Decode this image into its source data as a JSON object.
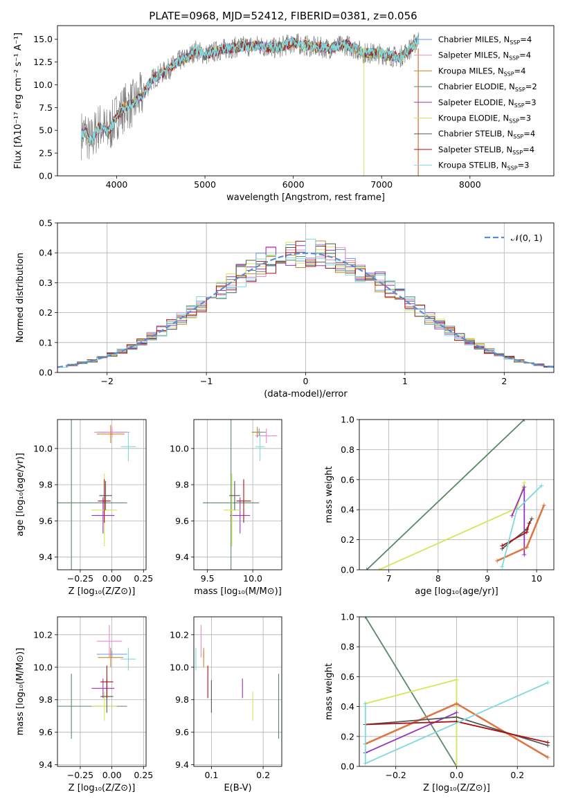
{
  "figure": {
    "title": "PLATE=0968, MJD=52412, FIBERID=0381, z=0.056",
    "series_colors": {
      "Chabrier MILES": "#6699dd",
      "Salpeter MILES": "#ee88cc",
      "Kroupa MILES": "#cc8822",
      "Chabrier ELODIE": "#558866",
      "Salpeter ELODIE": "#9933bb",
      "Kroupa ELODIE": "#d4e655",
      "Chabrier STELIB": "#555555",
      "Salpeter STELIB": "#aa1111",
      "Kroupa STELIB": "#7fd8dd",
      "Kroupa MILES (bold)": "#dd7744"
    }
  },
  "chart_data": [
    {
      "id": "spectrum",
      "type": "line",
      "title": "PLATE=0968, MJD=52412, FIBERID=0381, z=0.056",
      "xlabel": "wavelength [Angstrom, rest frame]",
      "ylabel": "Flux [fλ10⁻¹⁷ erg cm⁻² s⁻¹ A⁻¹]",
      "xlim": [
        3330,
        8950
      ],
      "ylim": [
        0,
        16.5
      ],
      "xticks": [
        "4000",
        "5000",
        "6000",
        "7000",
        "8000"
      ],
      "yticks": [
        "0.0",
        "2.5",
        "5.0",
        "7.5",
        "10.0",
        "12.5",
        "15.0"
      ],
      "grid": false,
      "legend_position": "right",
      "continuum": {
        "x": [
          3600,
          3650,
          3700,
          3800,
          3900,
          3950,
          4000,
          4100,
          4200,
          4300,
          4400,
          4500,
          4600,
          4700,
          4800,
          4900,
          5000,
          5200,
          5400,
          5600,
          5800,
          6000,
          6200,
          6400,
          6600,
          6800,
          7000,
          7200,
          7350,
          7420
        ],
        "y": [
          4.5,
          4.8,
          3.6,
          5.5,
          4.8,
          5.6,
          6.6,
          7.6,
          8.0,
          9.0,
          10.6,
          11.2,
          11.8,
          12.6,
          13.0,
          13.8,
          13.3,
          13.9,
          14.2,
          14.3,
          14.0,
          14.6,
          14.2,
          14.0,
          14.4,
          13.5,
          13.4,
          13.0,
          14.2,
          15.0
        ]
      },
      "legend": [
        "Chabrier MILES, N_SSP=4",
        "Salpeter MILES, N_SSP=4",
        "Kroupa MILES, N_SSP=4",
        "Chabrier ELODIE, N_SSP=2",
        "Salpeter ELODIE, N_SSP=3",
        "Kroupa ELODIE, N_SSP=3",
        "Chabrier STELIB, N_SSP=4",
        "Salpeter STELIB, N_SSP=4",
        "Kroupa STELIB, N_SSP=3"
      ]
    },
    {
      "id": "residuals",
      "type": "line",
      "xlabel": "(data-model)/error",
      "ylabel": "Normed distribution",
      "xlim": [
        -2.5,
        2.5
      ],
      "ylim": [
        0,
        0.5
      ],
      "xticks": [
        "−2",
        "−1",
        "0",
        "1",
        "2"
      ],
      "yticks": [
        "0.0",
        "0.1",
        "0.2",
        "0.3",
        "0.4",
        "0.5"
      ],
      "grid": true,
      "legend": [
        "𝒩(0, 1)"
      ],
      "gaussian": {
        "mean": 0,
        "sigma": 1
      }
    },
    {
      "id": "age_vs_Z",
      "type": "scatter",
      "xlabel": "Z [log₁₀(Z/Z⊙)]",
      "ylabel": "age  [log₁₀(age/yr)]",
      "xlim": [
        -0.43,
        0.27
      ],
      "ylim": [
        9.33,
        10.16
      ],
      "xticks": [
        "−0.25",
        "0.00",
        "0.25"
      ],
      "yticks": [
        "9.4",
        "9.6",
        "9.8",
        "10.0"
      ],
      "grid": true,
      "points": [
        {
          "x": 0.0,
          "y": 10.09,
          "xerr": 0.12,
          "yerr": 0.02
        },
        {
          "x": 0.0,
          "y": 10.09,
          "xerr": 0.14,
          "yerr": 0.03
        },
        {
          "x": -0.01,
          "y": 10.08,
          "xerr": 0.11,
          "yerr": 0.05
        },
        {
          "x": -0.32,
          "y": 9.7,
          "xerr": 0.44,
          "yerr": 0.6
        },
        {
          "x": -0.07,
          "y": 9.63,
          "xerr": 0.09,
          "yerr": 0.1
        },
        {
          "x": -0.06,
          "y": 9.66,
          "xerr": 0.1,
          "yerr": 0.2
        },
        {
          "x": -0.05,
          "y": 9.74,
          "xerr": 0.05,
          "yerr": 0.08
        },
        {
          "x": -0.06,
          "y": 9.71,
          "xerr": 0.05,
          "yerr": 0.12
        },
        {
          "x": 0.13,
          "y": 10.01,
          "xerr": 0.06,
          "yerr": 0.08
        }
      ]
    },
    {
      "id": "age_vs_mass",
      "type": "scatter",
      "xlabel": "mass [log₁₀(M/M⊙)]",
      "ylabel": "",
      "xlim": [
        9.35,
        10.32
      ],
      "ylim": [
        9.33,
        10.16
      ],
      "xticks": [
        "9.5",
        "10.0"
      ],
      "yticks": [
        "9.4",
        "9.6",
        "9.8",
        "10.0"
      ],
      "grid": true,
      "points": [
        {
          "x": 10.07,
          "y": 10.09,
          "xerr": 0.08,
          "yerr": 0.02
        },
        {
          "x": 10.15,
          "y": 10.07,
          "xerr": 0.12,
          "yerr": 0.04
        },
        {
          "x": 10.05,
          "y": 10.09,
          "xerr": 0.06,
          "yerr": 0.03
        },
        {
          "x": 9.76,
          "y": 9.7,
          "xerr": 0.31,
          "yerr": 0.6
        },
        {
          "x": 9.86,
          "y": 9.63,
          "xerr": 0.11,
          "yerr": 0.1
        },
        {
          "x": 9.77,
          "y": 9.66,
          "xerr": 0.09,
          "yerr": 0.2
        },
        {
          "x": 9.8,
          "y": 9.74,
          "xerr": 0.06,
          "yerr": 0.08
        },
        {
          "x": 9.9,
          "y": 9.71,
          "xerr": 0.08,
          "yerr": 0.12
        },
        {
          "x": 10.08,
          "y": 10.01,
          "xerr": 0.05,
          "yerr": 0.08
        }
      ]
    },
    {
      "id": "weight_vs_age",
      "type": "line",
      "xlabel": "age  [log₁₀(age/yr)]",
      "ylabel": "mass weight",
      "xlim": [
        6.4,
        10.35
      ],
      "ylim": [
        0,
        1
      ],
      "xticks": [
        "7",
        "8",
        "9",
        "10"
      ],
      "yticks": [
        "0.0",
        "0.2",
        "0.4",
        "0.6",
        "0.8",
        "1.0"
      ],
      "grid": true,
      "series": [
        {
          "x": [
            6.55,
            9.75
          ],
          "y": [
            0.0,
            1.0
          ]
        },
        {
          "x": [
            6.8,
            9.6,
            9.75
          ],
          "y": [
            0.0,
            0.41,
            0.58
          ]
        },
        {
          "x": [
            9.5,
            9.75,
            9.75
          ],
          "y": [
            0.36,
            0.55,
            0.1
          ]
        },
        {
          "x": [
            9.2,
            9.8,
            10.15
          ],
          "y": [
            0.06,
            0.15,
            0.43
          ]
        },
        {
          "x": [
            9.3,
            9.8,
            9.9
          ],
          "y": [
            0.14,
            0.27,
            0.34
          ]
        },
        {
          "x": [
            9.3,
            9.8,
            9.85
          ],
          "y": [
            0.16,
            0.25,
            0.31
          ]
        },
        {
          "x": [
            9.3,
            9.6,
            10.1
          ],
          "y": [
            0.02,
            0.4,
            0.56
          ]
        }
      ]
    },
    {
      "id": "mass_vs_Z",
      "type": "scatter",
      "xlabel": "Z [log₁₀(Z/Z⊙)]",
      "ylabel": "mass [log₁₀(M/M⊙)]",
      "xlim": [
        -0.43,
        0.27
      ],
      "ylim": [
        9.39,
        10.31
      ],
      "xticks": [
        "−0.25",
        "0.00",
        "0.25"
      ],
      "yticks": [
        "9.4",
        "9.6",
        "9.8",
        "10.0",
        "10.2"
      ],
      "grid": true,
      "points": [
        {
          "x": 0.0,
          "y": 10.08,
          "xerr": 0.12,
          "yerr": 0.02
        },
        {
          "x": -0.02,
          "y": 10.16,
          "xerr": 0.1,
          "yerr": 0.1
        },
        {
          "x": -0.01,
          "y": 10.06,
          "xerr": 0.1,
          "yerr": 0.06
        },
        {
          "x": -0.32,
          "y": 9.76,
          "xerr": 0.44,
          "yerr": 0.2
        },
        {
          "x": -0.07,
          "y": 9.87,
          "xerr": 0.09,
          "yerr": 0.06
        },
        {
          "x": -0.06,
          "y": 9.76,
          "xerr": 0.1,
          "yerr": 0.09
        },
        {
          "x": -0.04,
          "y": 9.82,
          "xerr": 0.05,
          "yerr": 0.1
        },
        {
          "x": -0.04,
          "y": 9.91,
          "xerr": 0.05,
          "yerr": 0.1
        },
        {
          "x": 0.13,
          "y": 10.05,
          "xerr": 0.06,
          "yerr": 0.07
        }
      ]
    },
    {
      "id": "mass_vs_ebv",
      "type": "scatter",
      "xlabel": "E(B-V)",
      "ylabel": "",
      "xlim": [
        0.066,
        0.236
      ],
      "ylim": [
        9.39,
        10.31
      ],
      "xticks": [
        "0.1",
        "0.2"
      ],
      "yticks": [
        "9.4",
        "9.6",
        "9.8",
        "10.0",
        "10.2"
      ],
      "grid": true,
      "points": [
        {
          "x": 0.085,
          "y": 10.08,
          "yerr": 0.02
        },
        {
          "x": 0.08,
          "y": 10.16,
          "yerr": 0.1
        },
        {
          "x": 0.085,
          "y": 10.06,
          "yerr": 0.06
        },
        {
          "x": 0.23,
          "y": 9.76,
          "yerr": 0.2
        },
        {
          "x": 0.16,
          "y": 9.87,
          "yerr": 0.06
        },
        {
          "x": 0.18,
          "y": 9.76,
          "yerr": 0.09
        },
        {
          "x": 0.1,
          "y": 9.82,
          "yerr": 0.1
        },
        {
          "x": 0.093,
          "y": 9.91,
          "yerr": 0.1
        },
        {
          "x": 0.07,
          "y": 10.05,
          "yerr": 0.07
        }
      ]
    },
    {
      "id": "weight_vs_Z",
      "type": "line",
      "xlabel": "Z [log₁₀(Z/Z⊙)]",
      "ylabel": "mass weight",
      "xlim": [
        -0.32,
        0.32
      ],
      "ylim": [
        0,
        1
      ],
      "xticks": [
        "−0.2",
        "0.0",
        "0.2"
      ],
      "yticks": [
        "0.0",
        "0.2",
        "0.4",
        "0.6",
        "0.8",
        "1.0"
      ],
      "grid": true,
      "series": [
        {
          "x": [
            -0.3,
            0.0
          ],
          "y": [
            1.0,
            0.0
          ]
        },
        {
          "x": [
            -0.3,
            0.0,
            0.0
          ],
          "y": [
            0.42,
            0.58,
            0.0
          ]
        },
        {
          "x": [
            -0.3,
            0.0
          ],
          "y": [
            0.09,
            0.36
          ]
        },
        {
          "x": [
            -0.3,
            0.0,
            0.3
          ],
          "y": [
            0.15,
            0.42,
            0.06
          ]
        },
        {
          "x": [
            -0.3,
            0.0,
            0.3
          ],
          "y": [
            0.28,
            0.33,
            0.14
          ]
        },
        {
          "x": [
            -0.3,
            0.0,
            0.3
          ],
          "y": [
            0.28,
            0.3,
            0.16
          ]
        },
        {
          "x": [
            -0.3,
            -0.3,
            0.3
          ],
          "y": [
            0.42,
            0.02,
            0.56
          ]
        }
      ]
    }
  ]
}
